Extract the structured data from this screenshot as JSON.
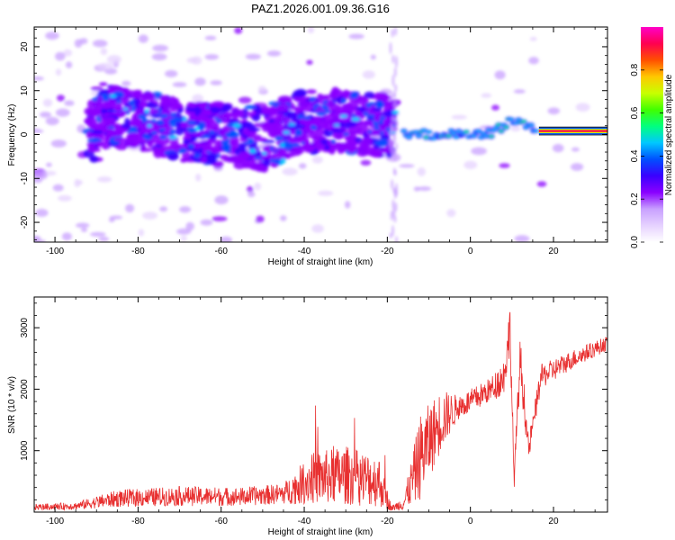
{
  "figure": {
    "title": "PAZ1.2026.001.09.36.G16"
  },
  "chart_data": [
    {
      "type": "heatmap",
      "title": "PAZ1.2026.001.09.36.G16",
      "xlabel": "Height of straight line (km)",
      "ylabel": "Frequency (Hz)",
      "xlim": [
        -105,
        33
      ],
      "ylim": [
        -24.5,
        24.5
      ],
      "x_ticks": [
        -100,
        -80,
        -60,
        -40,
        -20,
        0,
        20
      ],
      "x_tick_labels": [
        "-100",
        "-80",
        "-60",
        "-40",
        "-20",
        "0",
        "20"
      ],
      "y_ticks": [
        -20,
        -10,
        0,
        10,
        20
      ],
      "y_tick_labels": [
        "-20",
        "-10",
        "0",
        "10",
        "20"
      ],
      "colorbar": {
        "label": "Normalized spectral amplitude",
        "range": [
          0,
          1
        ],
        "ticks": [
          0.0,
          0.2,
          0.4,
          0.6,
          0.8
        ],
        "tick_labels": [
          "0.0",
          "0.2",
          "0.4",
          "0.6",
          "0.8"
        ],
        "colors": [
          "#ffffff",
          "#e6d2ff",
          "#c8a0ff",
          "#8a00ff",
          "#3a00ff",
          "#0050ff",
          "#00c8ff",
          "#00ff80",
          "#40ff00",
          "#c8ff00",
          "#ffc800",
          "#ff5000",
          "#ff0050",
          "#ff00c8"
        ]
      },
      "ridge": [
        {
          "x": -90,
          "y": 5
        },
        {
          "x": -80,
          "y": 3
        },
        {
          "x": -70,
          "y": 1
        },
        {
          "x": -60,
          "y": 0
        },
        {
          "x": -50,
          "y": -1
        },
        {
          "x": -40,
          "y": 3
        },
        {
          "x": -30,
          "y": 3
        },
        {
          "x": -20,
          "y": 2
        },
        {
          "x": -15,
          "y": 0
        },
        {
          "x": -10,
          "y": 0
        },
        {
          "x": -5,
          "y": 0
        },
        {
          "x": 0,
          "y": 0
        },
        {
          "x": 5,
          "y": 0.5
        },
        {
          "x": 10,
          "y": 3
        },
        {
          "x": 15,
          "y": 1.5
        },
        {
          "x": 20,
          "y": 0.8
        },
        {
          "x": 33,
          "y": 0.8
        }
      ]
    },
    {
      "type": "line",
      "xlabel": "Height of straight line (km)",
      "ylabel": "SNR (10 * v/v)",
      "xlim": [
        -105,
        33
      ],
      "ylim": [
        0,
        3500
      ],
      "x_ticks": [
        -100,
        -80,
        -60,
        -40,
        -20,
        0,
        20
      ],
      "x_tick_labels": [
        "-100",
        "-80",
        "-60",
        "-40",
        "-20",
        "0",
        "20"
      ],
      "y_ticks": [
        1000,
        2000,
        3000
      ],
      "y_tick_labels": [
        "1000",
        "2000",
        "3000"
      ],
      "series": [
        {
          "name": "SNR",
          "color": "#e83030",
          "envelope": [
            {
              "x": -105,
              "mean": 80,
              "noise": 50
            },
            {
              "x": -95,
              "mean": 100,
              "noise": 60
            },
            {
              "x": -85,
              "mean": 220,
              "noise": 140
            },
            {
              "x": -70,
              "mean": 260,
              "noise": 160
            },
            {
              "x": -55,
              "mean": 250,
              "noise": 150
            },
            {
              "x": -45,
              "mean": 300,
              "noise": 170
            },
            {
              "x": -38,
              "mean": 550,
              "noise": 420
            },
            {
              "x": -30,
              "mean": 600,
              "noise": 480
            },
            {
              "x": -22,
              "mean": 500,
              "noise": 420
            },
            {
              "x": -19,
              "mean": 60,
              "noise": 40
            },
            {
              "x": -16,
              "mean": 150,
              "noise": 120
            },
            {
              "x": -12,
              "mean": 900,
              "noise": 700
            },
            {
              "x": -7,
              "mean": 1500,
              "noise": 500
            },
            {
              "x": -3,
              "mean": 1700,
              "noise": 200
            },
            {
              "x": 0,
              "mean": 1800,
              "noise": 200
            },
            {
              "x": 5,
              "mean": 2000,
              "noise": 200
            },
            {
              "x": 8,
              "mean": 2200,
              "noise": 300
            },
            {
              "x": 9.6,
              "mean": 3000,
              "noise": 450
            },
            {
              "x": 10.5,
              "mean": 500,
              "noise": 150
            },
            {
              "x": 12,
              "mean": 2500,
              "noise": 400
            },
            {
              "x": 14,
              "mean": 1000,
              "noise": 200
            },
            {
              "x": 17,
              "mean": 2200,
              "noise": 200
            },
            {
              "x": 25,
              "mean": 2500,
              "noise": 150
            },
            {
              "x": 33,
              "mean": 2750,
              "noise": 120
            }
          ]
        }
      ]
    }
  ]
}
